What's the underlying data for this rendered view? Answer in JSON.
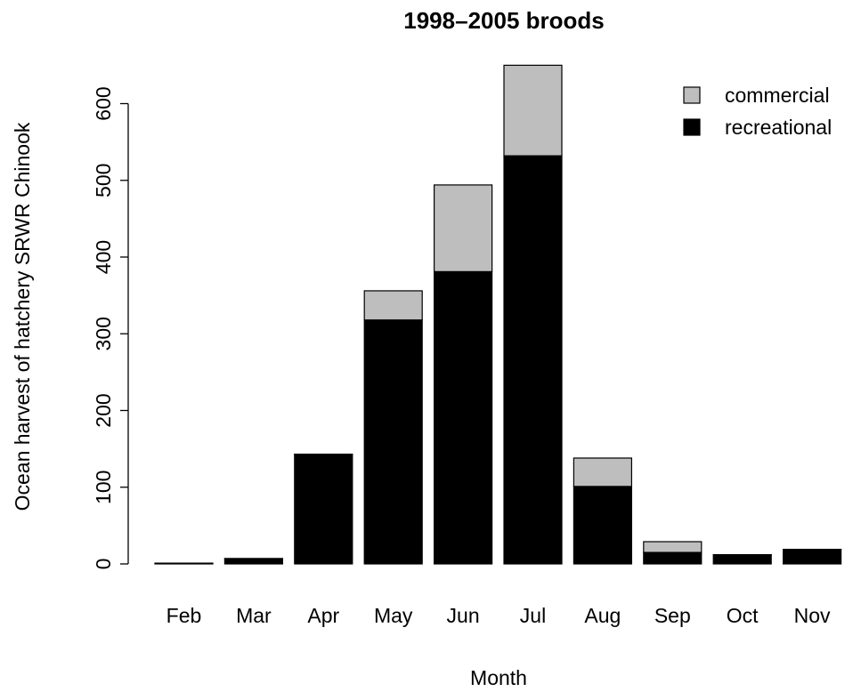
{
  "chart_data": {
    "type": "bar",
    "stacked": true,
    "title": "1998–2005 broods",
    "xlabel": "Month",
    "ylabel": "Ocean harvest of hatchery SRWR Chinook",
    "categories": [
      "Feb",
      "Mar",
      "Apr",
      "May",
      "Jun",
      "Jul",
      "Aug",
      "Sep",
      "Oct",
      "Nov"
    ],
    "series": [
      {
        "name": "recreational",
        "color": "#000000",
        "values": [
          1,
          7,
          143,
          318,
          381,
          532,
          101,
          15,
          12,
          19
        ]
      },
      {
        "name": "commercial",
        "color": "#bebebe",
        "values": [
          0,
          0,
          0,
          38,
          113,
          118,
          37,
          14,
          0,
          0
        ]
      }
    ],
    "ylim": [
      0,
      650
    ],
    "yticks": [
      0,
      100,
      200,
      300,
      400,
      500,
      600
    ],
    "grid": false,
    "legend_position": "top-right",
    "legend_order": [
      "commercial",
      "recreational"
    ]
  }
}
